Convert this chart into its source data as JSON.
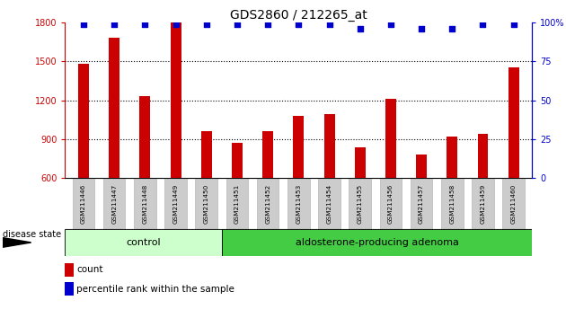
{
  "title": "GDS2860 / 212265_at",
  "samples": [
    "GSM211446",
    "GSM211447",
    "GSM211448",
    "GSM211449",
    "GSM211450",
    "GSM211451",
    "GSM211452",
    "GSM211453",
    "GSM211454",
    "GSM211455",
    "GSM211456",
    "GSM211457",
    "GSM211458",
    "GSM211459",
    "GSM211460"
  ],
  "counts": [
    1480,
    1680,
    1230,
    1800,
    960,
    870,
    960,
    1080,
    1090,
    840,
    1210,
    780,
    920,
    940,
    1450
  ],
  "percentile": [
    99,
    99,
    99,
    99,
    99,
    99,
    99,
    99,
    99,
    96,
    99,
    96,
    96,
    99,
    99
  ],
  "ylim_left": [
    600,
    1800
  ],
  "ylim_right": [
    0,
    100
  ],
  "yticks_left": [
    600,
    900,
    1200,
    1500,
    1800
  ],
  "yticks_right": [
    0,
    25,
    50,
    75,
    100
  ],
  "bar_color": "#cc0000",
  "dot_color": "#0000cc",
  "control_count": 5,
  "adenoma_count": 10,
  "control_label": "control",
  "adenoma_label": "aldosterone-producing adenoma",
  "disease_state_label": "disease state",
  "legend_count_label": "count",
  "legend_pct_label": "percentile rank within the sample",
  "control_bg": "#ccffcc",
  "adenoma_bg": "#44cc44",
  "sample_bg": "#cccccc",
  "title_fontsize": 10,
  "tick_fontsize": 7,
  "label_fontsize": 7.5
}
